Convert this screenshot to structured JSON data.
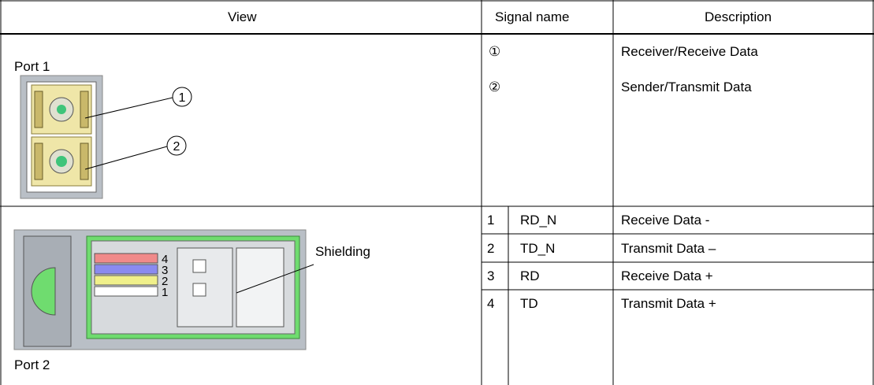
{
  "header": {
    "columns": [
      "View",
      "Signal name",
      "Description"
    ]
  },
  "port1": {
    "label": "Port 1",
    "callouts": [
      "1",
      "2"
    ],
    "rows": [
      {
        "signal": "①",
        "description": "Receiver/Receive Data"
      },
      {
        "signal": "②",
        "description": "Sender/Transmit Data"
      }
    ]
  },
  "port2": {
    "label": "Port 2",
    "shielding": "Shielding",
    "wire_labels": [
      "4",
      "3",
      "2",
      "1"
    ],
    "rows": [
      {
        "pin": "1",
        "name": "RD_N",
        "description": "Receive Data -"
      },
      {
        "pin": "2",
        "name": "TD_N",
        "description": "Transmit Data –"
      },
      {
        "pin": "3",
        "name": "RD",
        "description": "Receive Data +"
      },
      {
        "pin": "4",
        "name": "TD",
        "description": "Transmit Data +"
      }
    ]
  }
}
